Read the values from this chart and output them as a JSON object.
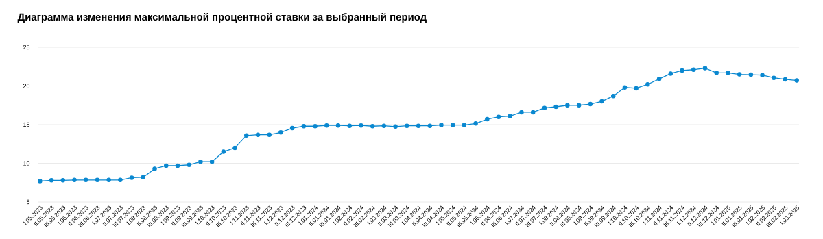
{
  "chart_data": {
    "type": "line",
    "title": "Диаграмма изменения максимальной процентной ставки за выбранный период",
    "categories": [
      "I.05.2023",
      "II.05.2023",
      "III.05.2023",
      "I.06.2023",
      "II.06.2023",
      "III.06.2023",
      "I.07.2023",
      "II.07.2023",
      "III.07.2023",
      "I.08.2023",
      "II.08.2023",
      "III.08.2023",
      "I.09.2023",
      "II.09.2023",
      "III.09.2023",
      "I.10.2023",
      "II.10.2023",
      "III.10.2023",
      "I.11.2023",
      "II.11.2023",
      "III.11.2023",
      "I.12.2023",
      "II.12.2023",
      "III.12.2023",
      "I.01.2024",
      "II.01.2024",
      "III.01.2024",
      "I.02.2024",
      "II.02.2024",
      "III.02.2024",
      "I.03.2024",
      "II.03.2024",
      "III.03.2024",
      "I.04.2024",
      "II.04.2024",
      "III.04.2024",
      "I.05.2024",
      "II.05.2024",
      "III.05.2024",
      "I.06.2024",
      "II.06.2024",
      "III.06.2024",
      "I.07.2024",
      "II.07.2024",
      "III.07.2024",
      "I.08.2024",
      "II.08.2024",
      "III.08.2024",
      "I.09.2024",
      "II.09.2024",
      "III.09.2024",
      "I.10.2024",
      "II.10.2024",
      "III.10.2024",
      "I.11.2024",
      "II.11.2024",
      "III.11.2024",
      "I.12.2024",
      "II.12.2024",
      "III.12.2024",
      "I.01.2025",
      "II.01.2025",
      "III.01.2025",
      "I.02.2025",
      "II.02.2025",
      "III.02.2025",
      "I.03.2025"
    ],
    "values": [
      7.7,
      7.8,
      7.8,
      7.85,
      7.85,
      7.85,
      7.85,
      7.85,
      8.15,
      8.2,
      9.3,
      9.7,
      9.7,
      9.8,
      10.2,
      10.2,
      11.5,
      12.0,
      13.6,
      13.7,
      13.7,
      14.0,
      14.55,
      14.8,
      14.8,
      14.9,
      14.9,
      14.85,
      14.9,
      14.8,
      14.85,
      14.75,
      14.85,
      14.85,
      14.85,
      14.95,
      14.95,
      14.95,
      15.15,
      15.7,
      16.0,
      16.1,
      16.6,
      16.6,
      17.15,
      17.3,
      17.5,
      17.5,
      17.65,
      18.0,
      18.7,
      19.8,
      19.7,
      20.2,
      20.9,
      21.6,
      22.0,
      22.1,
      22.3,
      21.7,
      21.7,
      21.5,
      21.45,
      21.4,
      21.05,
      20.85,
      20.7
    ],
    "color": "#0a88d0",
    "ylim": [
      5,
      25
    ],
    "yticks": [
      5,
      10,
      15,
      20,
      25
    ],
    "grid": "y",
    "marker": "circle",
    "line_style": "solid"
  }
}
